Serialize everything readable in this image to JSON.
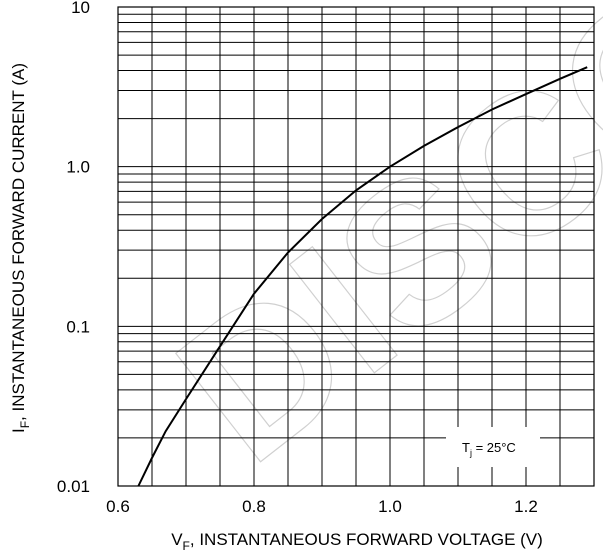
{
  "chart_data": {
    "type": "line",
    "xlabel": "V_F, INSTANTANEOUS FORWARD VOLTAGE (V)",
    "xlabel_parts": {
      "main": "V",
      "sub": "F",
      "rest": ", INSTANTANEOUS FORWARD VOLTAGE (V)"
    },
    "ylabel": "I_F, INSTANTANEOUS FORWARD CURRENT (A)",
    "ylabel_parts": {
      "main": "I",
      "sub": "F",
      "rest": ", INSTANTANEOUS FORWARD CURRENT (A)"
    },
    "xlim": [
      0.6,
      1.3
    ],
    "ylim": [
      0.01,
      10
    ],
    "yscale": "log",
    "grid": true,
    "x_ticks": [
      {
        "value": 0.6,
        "label": "0.6"
      },
      {
        "value": 0.8,
        "label": "0.8"
      },
      {
        "value": 1.0,
        "label": "1.0"
      },
      {
        "value": 1.2,
        "label": "1.2"
      }
    ],
    "y_ticks": [
      {
        "value": 0.01,
        "label": "0.01"
      },
      {
        "value": 0.1,
        "label": "0.1"
      },
      {
        "value": 1.0,
        "label": "1.0"
      },
      {
        "value": 10,
        "label": "10"
      }
    ],
    "annotation": {
      "main": "T",
      "sub": "j",
      "rest": " = 25°C"
    },
    "watermark": "DISCONTINUED",
    "series": [
      {
        "x": [
          0.63,
          0.65,
          0.67,
          0.7,
          0.75,
          0.8,
          0.85,
          0.9,
          0.95,
          1.0,
          1.05,
          1.1,
          1.15,
          1.2,
          1.25,
          1.29
        ],
        "y": [
          0.01,
          0.015,
          0.022,
          0.035,
          0.075,
          0.16,
          0.29,
          0.47,
          0.71,
          1.0,
          1.35,
          1.77,
          2.28,
          2.85,
          3.55,
          4.2
        ]
      }
    ]
  }
}
